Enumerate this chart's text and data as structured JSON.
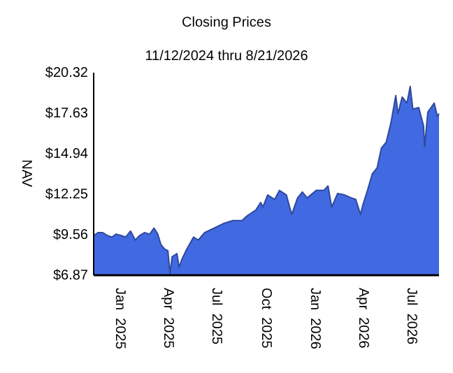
{
  "chart_data": {
    "type": "area",
    "title": "Closing Prices",
    "subtitle": "11/12/2024 thru 8/21/2026",
    "ylabel": "NAV",
    "xlim": [
      "2024-11-12",
      "2026-08-21"
    ],
    "xticks": [
      {
        "value": "2025-01-01",
        "label": "Jan  2025"
      },
      {
        "value": "2025-04-01",
        "label": "Apr  2025"
      },
      {
        "value": "2025-07-01",
        "label": "Jul  2025"
      },
      {
        "value": "2025-10-01",
        "label": "Oct  2025"
      },
      {
        "value": "2026-01-01",
        "label": "Jan  2026"
      },
      {
        "value": "2026-04-01",
        "label": "Apr  2026"
      },
      {
        "value": "2026-07-01",
        "label": "Jul  2026"
      }
    ],
    "ylim": [
      6.87,
      20.32
    ],
    "yticks": [
      {
        "value": 6.87,
        "label": "$6.87"
      },
      {
        "value": 9.56,
        "label": "$9.56"
      },
      {
        "value": 12.25,
        "label": "$12.25"
      },
      {
        "value": 14.94,
        "label": "$14.94"
      },
      {
        "value": 17.63,
        "label": "$17.63"
      },
      {
        "value": 20.32,
        "label": "$20.32"
      }
    ],
    "grid": false,
    "x": [
      "2024-11-12",
      "2024-11-20",
      "2024-11-29",
      "2024-12-08",
      "2024-12-16",
      "2024-12-24",
      "2025-01-03",
      "2025-01-11",
      "2025-01-20",
      "2025-01-29",
      "2025-02-06",
      "2025-02-15",
      "2025-02-25",
      "2025-03-05",
      "2025-03-12",
      "2025-03-18",
      "2025-03-25",
      "2025-03-31",
      "2025-04-04",
      "2025-04-08",
      "2025-04-17",
      "2025-04-21",
      "2025-04-26",
      "2025-05-04",
      "2025-05-18",
      "2025-05-27",
      "2025-06-08",
      "2025-06-26",
      "2025-07-13",
      "2025-07-31",
      "2025-08-17",
      "2025-08-26",
      "2025-09-12",
      "2025-09-21",
      "2025-09-25",
      "2025-10-04",
      "2025-10-17",
      "2025-10-26",
      "2025-11-08",
      "2025-11-18",
      "2025-11-29",
      "2025-12-08",
      "2025-12-17",
      "2026-01-03",
      "2026-01-17",
      "2026-01-25",
      "2026-02-01",
      "2026-02-12",
      "2026-02-25",
      "2026-03-10",
      "2026-03-18",
      "2026-03-27",
      "2026-03-31",
      "2026-04-09",
      "2026-04-18",
      "2026-04-27",
      "2026-05-05",
      "2026-05-14",
      "2026-05-23",
      "2026-06-01",
      "2026-06-05",
      "2026-06-13",
      "2026-06-22",
      "2026-06-28",
      "2026-07-03",
      "2026-07-14",
      "2026-07-23",
      "2026-07-25",
      "2026-07-31",
      "2026-08-12",
      "2026-08-18",
      "2026-08-21"
    ],
    "series": [
      {
        "color": "#4169e1",
        "values": [
          9.5,
          9.7,
          9.7,
          9.5,
          9.4,
          9.6,
          9.5,
          9.4,
          9.8,
          9.2,
          9.5,
          9.7,
          9.6,
          10.0,
          9.6,
          8.9,
          8.6,
          8.5,
          7.0,
          8.1,
          8.3,
          7.4,
          7.9,
          8.5,
          9.4,
          9.2,
          9.7,
          10.0,
          10.3,
          10.5,
          10.5,
          10.8,
          11.2,
          11.7,
          11.4,
          12.2,
          11.9,
          12.5,
          12.2,
          10.9,
          12.0,
          12.4,
          12.0,
          12.5,
          12.5,
          12.8,
          11.4,
          12.3,
          12.2,
          12.0,
          11.9,
          10.9,
          11.5,
          12.5,
          13.6,
          14.0,
          15.3,
          15.7,
          17.0,
          18.8,
          17.6,
          18.7,
          18.3,
          19.4,
          17.9,
          18.0,
          16.8,
          15.4,
          17.7,
          18.3,
          17.4,
          17.6
        ]
      }
    ]
  }
}
